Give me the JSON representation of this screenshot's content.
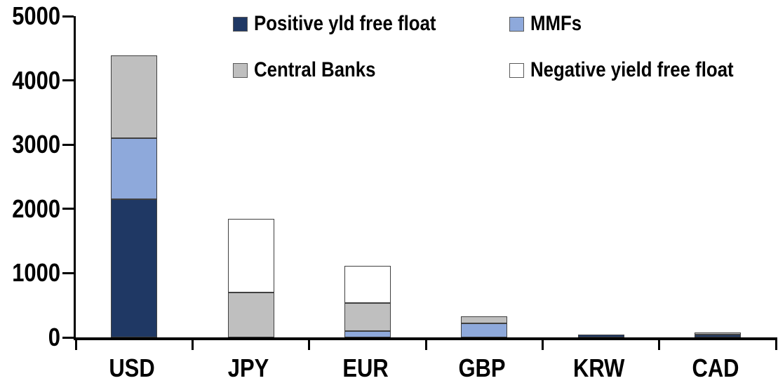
{
  "chart_data": {
    "type": "bar",
    "stacked": true,
    "title": "",
    "xlabel": "",
    "ylabel": "",
    "categories": [
      "USD",
      "JPY",
      "EUR",
      "GBP",
      "KRW",
      "CAD"
    ],
    "series": [
      {
        "name": "Positive yld free float",
        "color": "#1F3864",
        "values": [
          2150,
          0,
          0,
          0,
          45,
          45
        ]
      },
      {
        "name": "MMFs",
        "color": "#8EA9DB",
        "values": [
          950,
          0,
          100,
          220,
          0,
          0
        ]
      },
      {
        "name": "Central Banks",
        "color": "#BFBFBF",
        "values": [
          1290,
          700,
          440,
          110,
          0,
          35
        ]
      },
      {
        "name": "Negative yield free float",
        "color": "#FFFFFF",
        "values": [
          0,
          1140,
          570,
          0,
          0,
          0
        ]
      }
    ],
    "ylim": [
      0,
      5000
    ],
    "yticks": [
      0,
      1000,
      2000,
      3000,
      4000,
      5000
    ],
    "legend_position": "top",
    "grid": false,
    "colors": {
      "axis": "#000000",
      "segment_border": "#404040",
      "background": "#FFFFFF"
    }
  }
}
